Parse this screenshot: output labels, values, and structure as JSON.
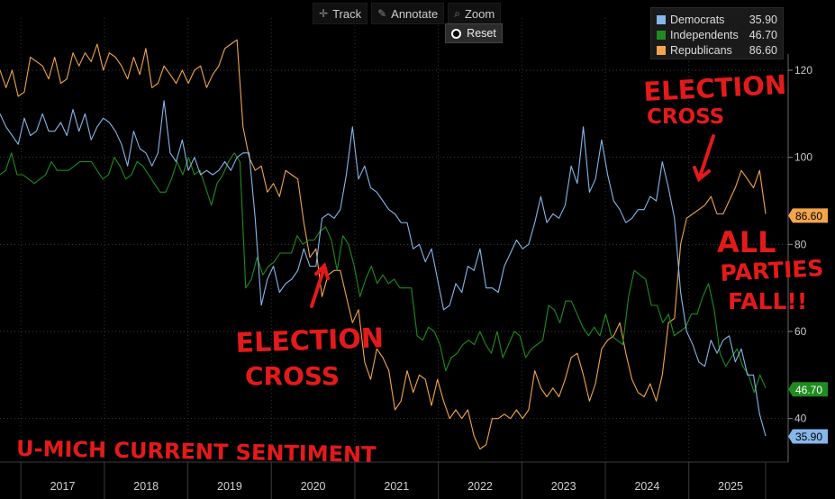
{
  "toolbar": {
    "track_label": "Track",
    "annotate_label": "Annotate",
    "zoom_label": "Zoom",
    "reset_label": "Reset"
  },
  "colors": {
    "democrats": "#86b6ea",
    "independents": "#1f8c1f",
    "republicans": "#f2a54a",
    "annotation": "#e41a1a",
    "axis": "#8a8a8a"
  },
  "annotations": {
    "election_cross_1": [
      "ELECTION",
      "CROSS"
    ],
    "election_cross_2": [
      "ELECTION",
      "CROSS"
    ],
    "all_parties_fall": [
      "ALL",
      "PARTIES",
      "FALL!!"
    ],
    "title": "U-MICH CURRENT SENTIMENT"
  },
  "chart_data": {
    "type": "line",
    "title": "U-MICH CURRENT SENTIMENT",
    "x_start": 2016.75,
    "x_end": 2025.92,
    "ylim": [
      30,
      132
    ],
    "y_ticks": [
      40,
      60,
      80,
      100,
      120
    ],
    "x_tick_labels": [
      "2017",
      "2018",
      "2019",
      "2020",
      "2021",
      "2022",
      "2023",
      "2024",
      "2025"
    ],
    "series": [
      {
        "name": "Democrats",
        "last_value": "35.90",
        "legend_value": "35.90",
        "values": [
          110,
          107,
          105,
          103,
          109,
          105,
          106,
          110,
          106,
          106,
          108,
          105,
          111,
          106,
          110,
          104,
          107,
          109,
          108,
          106,
          103,
          98,
          106,
          102,
          101,
          98,
          101,
          113,
          101,
          99,
          104,
          97,
          100,
          96,
          97,
          96,
          97,
          99,
          97,
          100,
          101,
          101,
          86,
          66,
          72,
          75,
          69,
          71,
          72,
          74,
          79,
          75,
          75,
          86,
          87,
          86,
          88,
          96,
          107,
          95,
          98,
          93,
          92,
          90,
          88,
          87,
          85,
          85,
          79,
          80,
          76,
          79,
          72,
          65,
          66,
          71,
          69,
          75,
          74,
          79,
          70,
          70,
          69,
          75,
          78,
          81,
          79,
          80,
          85,
          91,
          85,
          87,
          86,
          89,
          98,
          94,
          107,
          92,
          95,
          104,
          96,
          90,
          88,
          85,
          86,
          88,
          88,
          91,
          90,
          99,
          93,
          86,
          69,
          60,
          57,
          53,
          52,
          58,
          55,
          58,
          59,
          53,
          56,
          50,
          50,
          41,
          36
        ]
      },
      {
        "name": "Independents",
        "last_value": "46.70",
        "legend_value": "46.70",
        "values": [
          96,
          97,
          101,
          96,
          96,
          95,
          94,
          95,
          96,
          99,
          97,
          97,
          97,
          98,
          99,
          99,
          99,
          97,
          95,
          96,
          100,
          98,
          95,
          96,
          99,
          98,
          96,
          94,
          92,
          92,
          95,
          99,
          96,
          100,
          96,
          97,
          93,
          89,
          94,
          96,
          99,
          101,
          99,
          70,
          72,
          77,
          73,
          75,
          76,
          78,
          78,
          78,
          82,
          80,
          81,
          81,
          83,
          84,
          81,
          74,
          82,
          80,
          75,
          68,
          72,
          75,
          71,
          73,
          71,
          72,
          70,
          70,
          70,
          59,
          58,
          61,
          60,
          57,
          51,
          54,
          55,
          57,
          58,
          57,
          60,
          57,
          55,
          60,
          54,
          57,
          60,
          59,
          54,
          56,
          57,
          58,
          66,
          65,
          62,
          67,
          67,
          64,
          61,
          59,
          61,
          59,
          64,
          59,
          58,
          57,
          68,
          74,
          73,
          72,
          66,
          66,
          62,
          64,
          59,
          60,
          61,
          64,
          64,
          68,
          71,
          65,
          55,
          52,
          54,
          56,
          52,
          50,
          46,
          50,
          47
        ]
      },
      {
        "name": "Republicans",
        "last_value": "86.60",
        "legend_value": "86.60",
        "values": [
          120,
          116,
          120,
          114,
          115,
          123,
          122,
          121,
          118,
          123,
          117,
          118,
          124,
          121,
          124,
          122,
          126,
          120,
          124,
          123,
          121,
          118,
          123,
          119,
          125,
          116,
          117,
          121,
          119,
          117,
          120,
          117,
          120,
          121,
          116,
          119,
          121,
          125,
          126,
          127,
          107,
          100,
          97,
          98,
          92,
          94,
          91,
          97,
          96,
          95,
          85,
          77,
          79,
          68,
          73,
          74,
          74,
          68,
          62,
          65,
          53,
          49,
          56,
          54,
          51,
          42,
          44,
          51,
          46,
          50,
          49,
          43,
          49,
          44,
          40,
          42,
          40,
          42,
          36,
          33,
          34,
          40,
          40,
          41,
          40,
          42,
          40,
          42,
          51,
          47,
          45,
          47,
          45,
          49,
          54,
          55,
          50,
          44,
          48,
          56,
          58,
          59,
          62,
          55,
          49,
          46,
          45,
          48,
          44,
          50,
          62,
          63,
          80,
          86,
          87,
          88,
          89,
          91,
          87,
          87,
          90,
          93,
          97,
          95,
          93,
          97,
          87
        ]
      }
    ]
  }
}
